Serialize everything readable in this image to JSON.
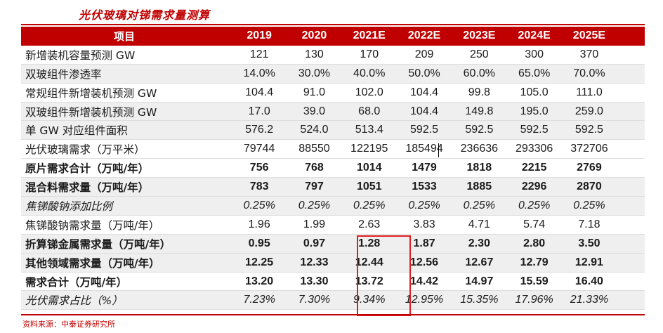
{
  "title": "光伏玻璃对锑需求量测算",
  "header": {
    "label": "项目",
    "years": [
      "2019",
      "2020",
      "2021E",
      "2022E",
      "2023E",
      "2024E",
      "2025E"
    ]
  },
  "rows": [
    {
      "label": "新增装机容量预测 GW",
      "values": [
        "121",
        "130",
        "170",
        "209",
        "250",
        "300",
        "370"
      ]
    },
    {
      "label": "双玻组件渗透率",
      "values": [
        "14.0%",
        "30.0%",
        "40.0%",
        "50.0%",
        "60.0%",
        "65.0%",
        "70.0%"
      ]
    },
    {
      "label": "常规组件新增装机预测 GW",
      "values": [
        "104.4",
        "91.0",
        "102.0",
        "104.4",
        "99.8",
        "105.0",
        "111.0"
      ]
    },
    {
      "label": "双玻组件新增装机预测 GW",
      "values": [
        "17.0",
        "39.0",
        "68.0",
        "104.4",
        "149.8",
        "195.0",
        "259.0"
      ]
    },
    {
      "label": "单 GW 对应组件面积",
      "values": [
        "576.2",
        "524.0",
        "513.4",
        "592.5",
        "592.5",
        "592.5",
        "592.5"
      ]
    },
    {
      "label": "光伏玻璃需求（万平米）",
      "values": [
        "79744",
        "88550",
        "122195",
        "185494",
        "236636",
        "293306",
        "372706"
      ]
    },
    {
      "label": "原片需求合计（万吨/年）",
      "values": [
        "756",
        "768",
        "1014",
        "1479",
        "1818",
        "2215",
        "2769"
      ]
    },
    {
      "label": "混合料需求量（万吨/年）",
      "values": [
        "783",
        "797",
        "1051",
        "1533",
        "1885",
        "2296",
        "2870"
      ]
    },
    {
      "label": "焦锑酸钠添加比例",
      "values": [
        "0.25%",
        "0.25%",
        "0.25%",
        "0.25%",
        "0.25%",
        "0.25%",
        "0.25%"
      ]
    },
    {
      "label": "焦锑酸钠需求量（万吨/年）",
      "values": [
        "1.96",
        "1.99",
        "2.63",
        "3.83",
        "4.71",
        "5.74",
        "7.18"
      ]
    },
    {
      "label": "折算锑金属需求量（万吨/年）",
      "values": [
        "0.95",
        "0.97",
        "1.28",
        "1.87",
        "2.30",
        "2.80",
        "3.50"
      ]
    },
    {
      "label": "其他领域需求量（万吨/年）",
      "values": [
        "12.25",
        "12.33",
        "12.44",
        "12.56",
        "12.67",
        "12.79",
        "12.91"
      ]
    },
    {
      "label": "需求合计（万吨/年）",
      "values": [
        "13.20",
        "13.30",
        "13.72",
        "14.42",
        "14.97",
        "15.59",
        "16.40"
      ]
    },
    {
      "label": "光伏需求占比（%）",
      "values": [
        "7.23%",
        "7.30%",
        "9.34%",
        "12.95%",
        "15.35%",
        "17.96%",
        "21.33%"
      ]
    }
  ],
  "source": "资料来源：中泰证券研究所"
}
